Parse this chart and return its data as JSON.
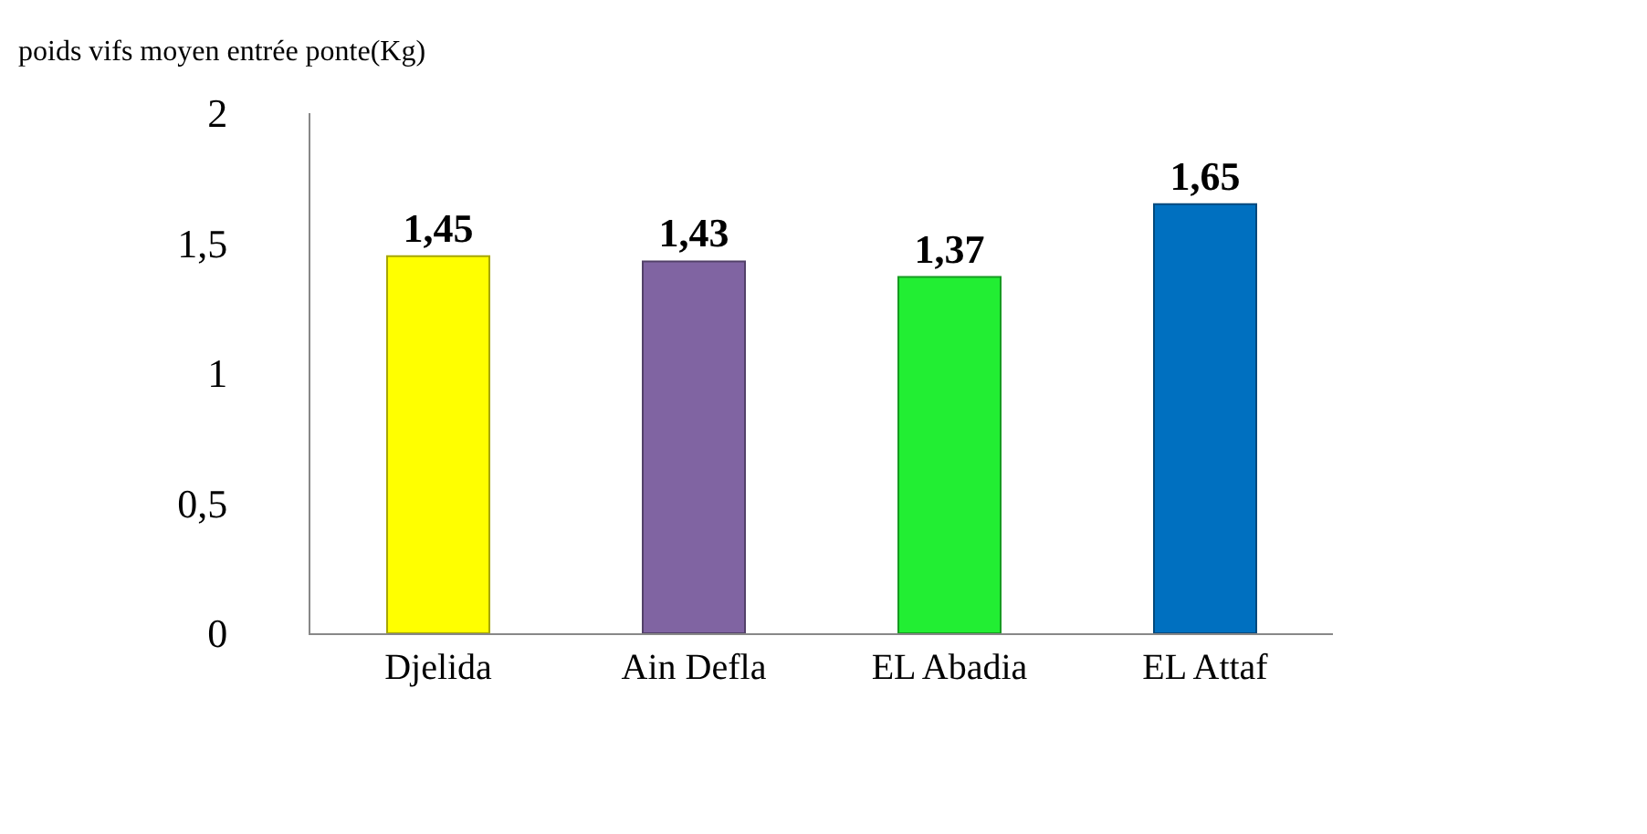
{
  "chart_data": {
    "type": "bar",
    "ylabel": "poids vifs moyen entrée ponte(Kg)",
    "categories": [
      "Djelida",
      "Ain Defla",
      "EL Abadia",
      "EL Attaf"
    ],
    "values": [
      1.45,
      1.43,
      1.37,
      1.65
    ],
    "colors": [
      "#ffff00",
      "#8064a2",
      "#22ee33",
      "#0070c0"
    ],
    "value_labels": [
      "1,45",
      "1,43",
      "1,37",
      "1,65"
    ],
    "ylim": [
      0,
      2
    ],
    "yticks": [
      0,
      {
        "value": 0.5,
        "label": "0,5"
      },
      1,
      {
        "value": 1.5,
        "label": "1,5"
      },
      2
    ],
    "grid": false
  }
}
